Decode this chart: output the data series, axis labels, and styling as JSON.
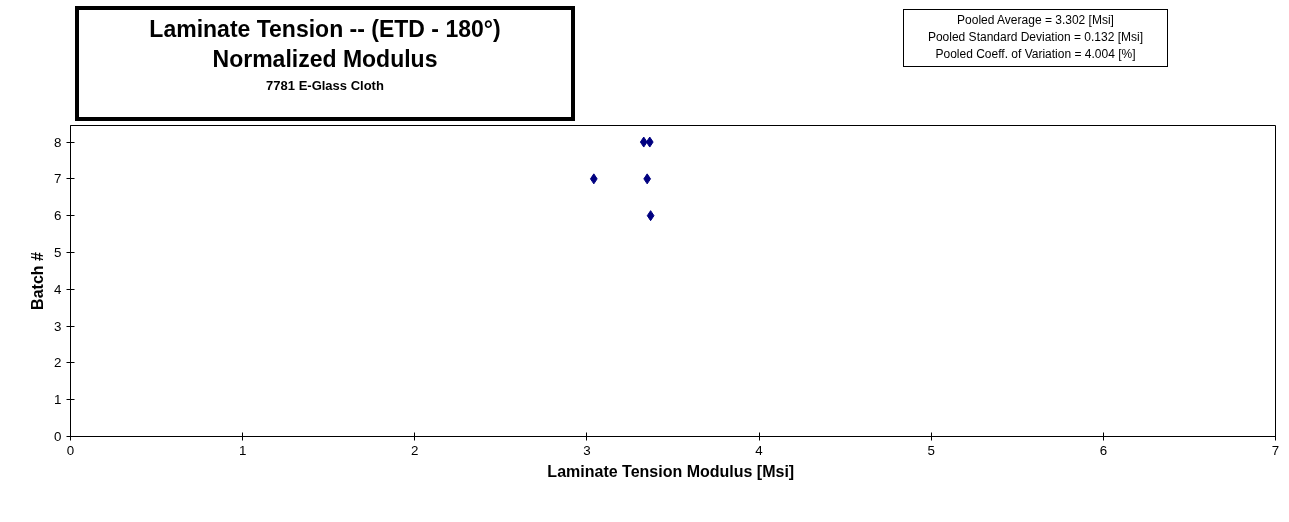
{
  "chart_data": {
    "type": "scatter",
    "title": "Laminate Tension -- (ETD - 180°)\nNormalized Modulus",
    "subtitle": "7781 E-Glass Cloth",
    "xlabel": "Laminate Tension Modulus  [Msi]",
    "ylabel": "Batch #",
    "annotations": [
      "Pooled Average = 3.302 [Msi]\nPooled Standard Deviation = 0.132  [Msi]\nPooled Coeff. of  Variation = 4.004 [%]"
    ],
    "x": [
      3.33,
      3.365,
      3.04,
      3.35,
      3.37
    ],
    "series": [
      {
        "color": "#000080",
        "values": [
          8,
          8,
          7,
          7,
          6
        ]
      }
    ],
    "marker": "diamond",
    "xlim": [
      0,
      7
    ],
    "ylim": [
      0,
      8.45
    ],
    "xticks": [
      0,
      1,
      2,
      3,
      4,
      5,
      6,
      7
    ],
    "yticks": [
      0,
      1,
      2,
      3,
      4,
      5,
      6,
      7,
      8
    ],
    "grid": false
  }
}
